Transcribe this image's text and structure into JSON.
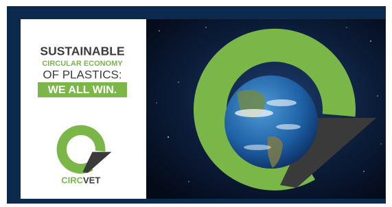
{
  "headline": {
    "line1": "SUSTAINABLE",
    "line2": "CIRCULAR ECONOMY",
    "line3": "OF PLASTICS:",
    "line4": "WE ALL WIN."
  },
  "logo": {
    "name_1": "CIRC",
    "name_2": "VET"
  }
}
